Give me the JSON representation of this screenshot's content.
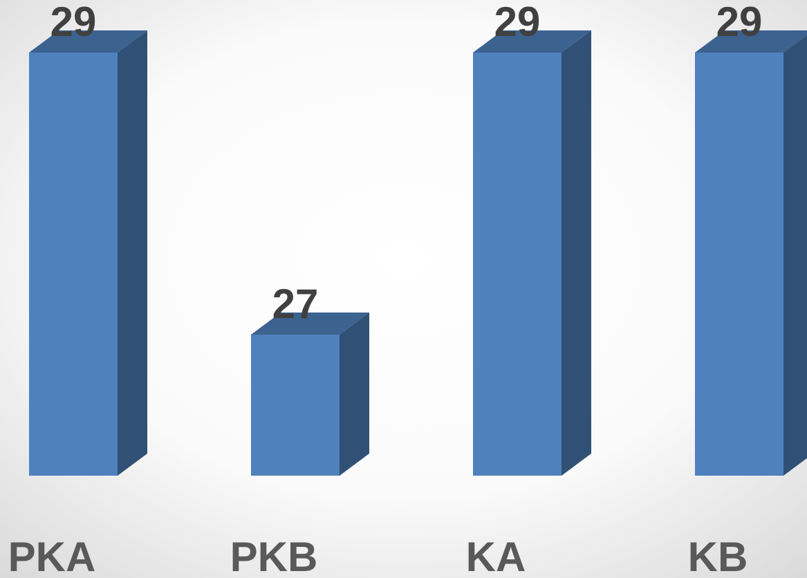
{
  "chart_data": {
    "type": "bar3d",
    "categories": [
      "PKA",
      "PKB",
      "KA",
      "KB"
    ],
    "values": [
      29,
      27,
      29,
      29
    ],
    "color": "#4f81bd",
    "ylim": [
      26,
      29
    ]
  }
}
